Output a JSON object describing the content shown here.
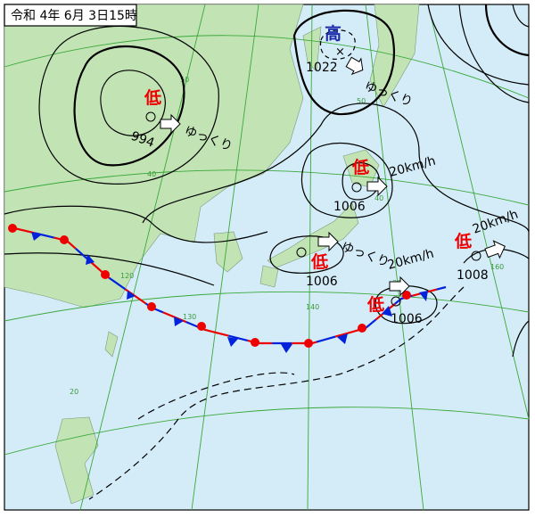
{
  "title": "令和 4年 6月 3日15時",
  "systems": [
    {
      "symbol": "高",
      "pressure": 1022,
      "movement": "ゆっくり"
    },
    {
      "symbol": "低",
      "pressure": 994,
      "movement": "ゆっくり"
    },
    {
      "symbol": "低",
      "pressure": 1006,
      "movement": "20km/h"
    },
    {
      "symbol": "低",
      "pressure": 1006,
      "movement": "ゆっくり"
    },
    {
      "symbol": "低",
      "pressure": 1006,
      "movement": "20km/h"
    },
    {
      "symbol": "低",
      "pressure": 1008,
      "movement": "20km/h"
    }
  ],
  "grid_labels": [
    "50",
    "40",
    "40",
    "50",
    "140",
    "130",
    "120",
    "20",
    "160",
    "30"
  ]
}
